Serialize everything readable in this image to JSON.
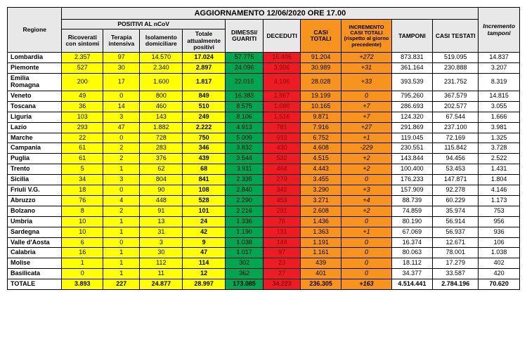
{
  "title": "AGGIORNAMENTO 12/06/2020 ORE 17.00",
  "headers": {
    "regione": "Regione",
    "positivi_group": "POSITIVI AL nCoV",
    "ricoverati": "Ricoverati con sintomi",
    "terapia": "Terapia intensiva",
    "isolamento": "Isolamento domiciliare",
    "totale_pos": "Totale attualmente positivi",
    "dimessi": "DIMESSI/ GUARITI",
    "deceduti": "DECEDUTI",
    "casi_totali": "CASI TOTALI",
    "incremento_casi": "INCREMENTO CASI TOTALI (rispetto al giorno precedente)",
    "tamponi": "TAMPONI",
    "casi_testati": "CASI TESTATI",
    "incremento_tamponi": "Incremento tamponi"
  },
  "colors": {
    "header_bg": "#e8e8e8",
    "yellow": "#ffff00",
    "green": "#00a651",
    "red": "#ed1c24",
    "orange": "#f7941d"
  },
  "rows": [
    {
      "region": "Lombardia",
      "ric": "2.357",
      "ter": "97",
      "iso": "14.570",
      "totpos": "17.024",
      "dim": "57.775",
      "dec": "16.405",
      "casi": "91.204",
      "inc": "+272",
      "tamp": "873.831",
      "test": "519.095",
      "inct": "14.837"
    },
    {
      "region": "Piemonte",
      "ric": "527",
      "ter": "30",
      "iso": "2.340",
      "totpos": "2.897",
      "dim": "24.096",
      "dec": "3.996",
      "casi": "30.989",
      "inc": "+31",
      "tamp": "361.164",
      "test": "230.888",
      "inct": "3.207"
    },
    {
      "region": "Emilia Romagna",
      "ric": "200",
      "ter": "17",
      "iso": "1.600",
      "totpos": "1.817",
      "dim": "22.015",
      "dec": "4.196",
      "casi": "28.028",
      "inc": "+33",
      "tamp": "393.539",
      "test": "231.752",
      "inct": "8.319"
    },
    {
      "region": "Veneto",
      "ric": "49",
      "ter": "0",
      "iso": "800",
      "totpos": "849",
      "dim": "16.383",
      "dec": "1.967",
      "casi": "19.199",
      "inc": "0",
      "tamp": "795.260",
      "test": "367.579",
      "inct": "14.815"
    },
    {
      "region": "Toscana",
      "ric": "36",
      "ter": "14",
      "iso": "460",
      "totpos": "510",
      "dim": "8.575",
      "dec": "1.080",
      "casi": "10.165",
      "inc": "+7",
      "tamp": "286.693",
      "test": "202.577",
      "inct": "3.055"
    },
    {
      "region": "Liguria",
      "ric": "103",
      "ter": "3",
      "iso": "143",
      "totpos": "249",
      "dim": "8.106",
      "dec": "1.516",
      "casi": "9.871",
      "inc": "+7",
      "tamp": "124.320",
      "test": "67.544",
      "inct": "1.666"
    },
    {
      "region": "Lazio",
      "ric": "293",
      "ter": "47",
      "iso": "1.882",
      "totpos": "2.222",
      "dim": "4.913",
      "dec": "781",
      "casi": "7.916",
      "inc": "+27",
      "tamp": "291.869",
      "test": "237.100",
      "inct": "3.981"
    },
    {
      "region": "Marche",
      "ric": "22",
      "ter": "0",
      "iso": "728",
      "totpos": "750",
      "dim": "5.009",
      "dec": "993",
      "casi": "6.752",
      "inc": "+1",
      "tamp": "119.045",
      "test": "72.169",
      "inct": "1.325"
    },
    {
      "region": "Campania",
      "ric": "61",
      "ter": "2",
      "iso": "283",
      "totpos": "346",
      "dim": "3.832",
      "dec": "430",
      "casi": "4.608",
      "inc": "-229",
      "tamp": "230.551",
      "test": "115.842",
      "inct": "3.728"
    },
    {
      "region": "Puglia",
      "ric": "61",
      "ter": "2",
      "iso": "376",
      "totpos": "439",
      "dim": "3.544",
      "dec": "532",
      "casi": "4.515",
      "inc": "+2",
      "tamp": "143.844",
      "test": "94.456",
      "inct": "2.522"
    },
    {
      "region": "Trento",
      "ric": "5",
      "ter": "1",
      "iso": "62",
      "totpos": "68",
      "dim": "3.911",
      "dec": "464",
      "casi": "4.443",
      "inc": "+2",
      "tamp": "100.400",
      "test": "53.453",
      "inct": "1.431"
    },
    {
      "region": "Sicilia",
      "ric": "34",
      "ter": "3",
      "iso": "804",
      "totpos": "841",
      "dim": "2.335",
      "dec": "279",
      "casi": "3.455",
      "inc": "0",
      "tamp": "176.233",
      "test": "147.871",
      "inct": "1.804"
    },
    {
      "region": "Friuli V.G.",
      "ric": "18",
      "ter": "0",
      "iso": "90",
      "totpos": "108",
      "dim": "2.840",
      "dec": "342",
      "casi": "3.290",
      "inc": "+3",
      "tamp": "157.909",
      "test": "92.278",
      "inct": "4.146"
    },
    {
      "region": "Abruzzo",
      "ric": "76",
      "ter": "4",
      "iso": "448",
      "totpos": "528",
      "dim": "2.290",
      "dec": "453",
      "casi": "3.271",
      "inc": "+4",
      "tamp": "88.739",
      "test": "60.229",
      "inct": "1.173"
    },
    {
      "region": "Bolzano",
      "ric": "8",
      "ter": "2",
      "iso": "91",
      "totpos": "101",
      "dim": "2.216",
      "dec": "291",
      "casi": "2.608",
      "inc": "+2",
      "tamp": "74.859",
      "test": "35.974",
      "inct": "753"
    },
    {
      "region": "Umbria",
      "ric": "10",
      "ter": "1",
      "iso": "13",
      "totpos": "24",
      "dim": "1.336",
      "dec": "76",
      "casi": "1.436",
      "inc": "0",
      "tamp": "80.190",
      "test": "56.914",
      "inct": "956"
    },
    {
      "region": "Sardegna",
      "ric": "10",
      "ter": "1",
      "iso": "31",
      "totpos": "42",
      "dim": "1.190",
      "dec": "131",
      "casi": "1.363",
      "inc": "+1",
      "tamp": "67.069",
      "test": "56.937",
      "inct": "936"
    },
    {
      "region": "Valle d'Aosta",
      "ric": "6",
      "ter": "0",
      "iso": "3",
      "totpos": "9",
      "dim": "1.038",
      "dec": "144",
      "casi": "1.191",
      "inc": "0",
      "tamp": "16.374",
      "test": "12.671",
      "inct": "106"
    },
    {
      "region": "Calabria",
      "ric": "16",
      "ter": "1",
      "iso": "30",
      "totpos": "47",
      "dim": "1.017",
      "dec": "97",
      "casi": "1.161",
      "inc": "0",
      "tamp": "80.063",
      "test": "78.001",
      "inct": "1.038"
    },
    {
      "region": "Molise",
      "ric": "1",
      "ter": "1",
      "iso": "112",
      "totpos": "114",
      "dim": "302",
      "dec": "23",
      "casi": "439",
      "inc": "0",
      "tamp": "18.112",
      "test": "17.279",
      "inct": "402"
    },
    {
      "region": "Basilicata",
      "ric": "0",
      "ter": "1",
      "iso": "11",
      "totpos": "12",
      "dim": "362",
      "dec": "27",
      "casi": "401",
      "inc": "0",
      "tamp": "34.377",
      "test": "33.587",
      "inct": "420"
    }
  ],
  "total": {
    "region": "TOTALE",
    "ric": "3.893",
    "ter": "227",
    "iso": "24.877",
    "totpos": "28.997",
    "dim": "173.085",
    "dec": "34.223",
    "casi": "236.305",
    "inc": "+163",
    "tamp": "4.514.441",
    "test": "2.784.196",
    "inct": "70.620"
  }
}
